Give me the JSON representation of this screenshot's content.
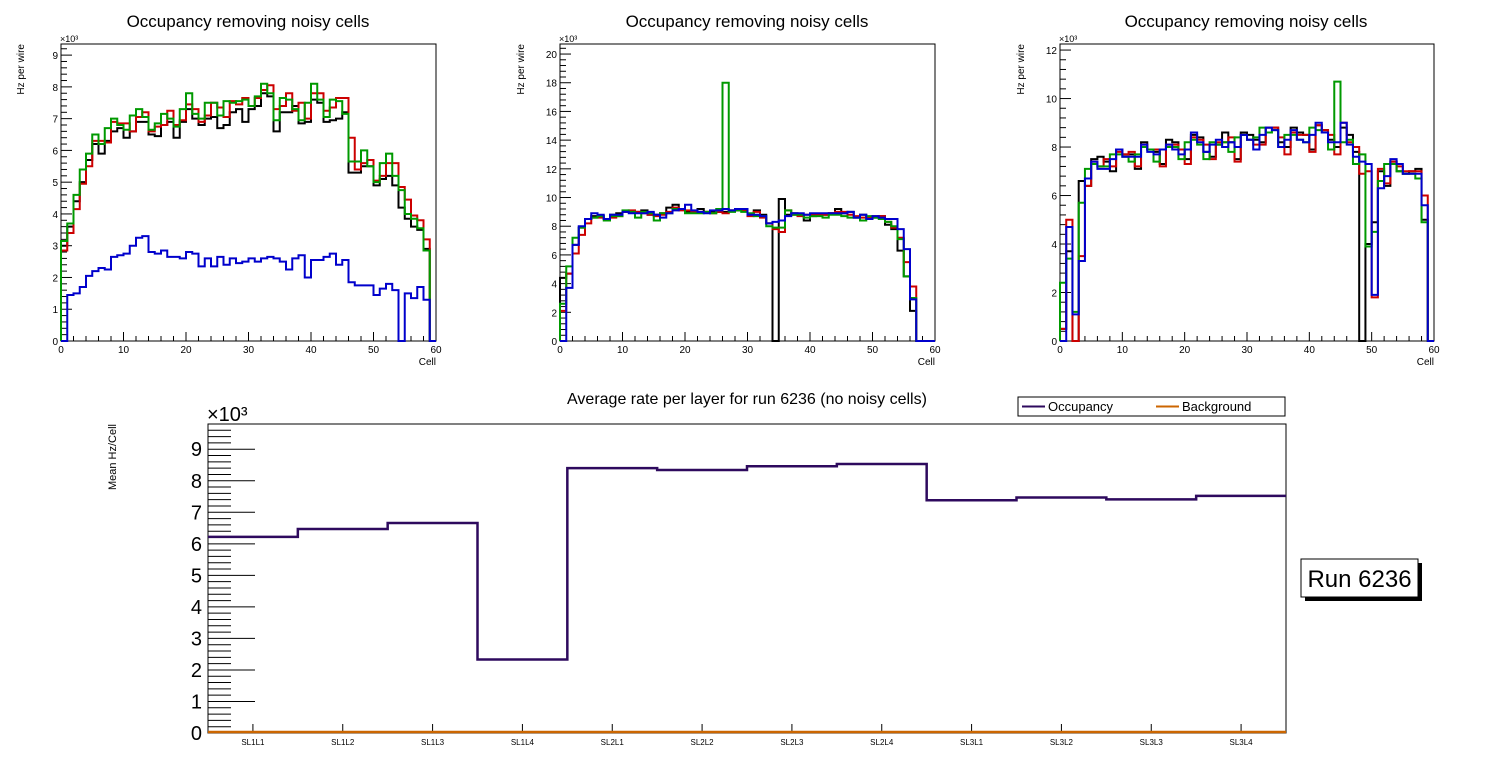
{
  "chart_data": [
    {
      "type": "histogram-step",
      "title": "Occupancy removing noisy cells",
      "xlabel": "Cell",
      "ylabel": "Hz per wire",
      "y_multiplier_label": "×10³",
      "xlim": [
        0,
        60
      ],
      "ylim": [
        0,
        9.35
      ],
      "y_units": "thousands",
      "xticks": [
        0,
        10,
        20,
        30,
        40,
        50,
        60
      ],
      "yticks": [
        0,
        1,
        2,
        3,
        4,
        5,
        6,
        7,
        8,
        9
      ],
      "series": [
        {
          "name": "black",
          "color": "#000000",
          "values": [
            3.0,
            3.6,
            4.4,
            5.0,
            5.7,
            6.2,
            5.9,
            6.3,
            6.6,
            6.7,
            6.4,
            6.6,
            6.9,
            6.9,
            6.5,
            6.45,
            6.8,
            6.9,
            6.4,
            6.9,
            7.3,
            7.0,
            6.8,
            7.0,
            7.05,
            6.7,
            6.8,
            7.2,
            7.3,
            6.9,
            7.3,
            7.4,
            7.8,
            7.7,
            6.6,
            7.2,
            7.2,
            7.4,
            6.85,
            6.9,
            7.6,
            7.5,
            6.9,
            6.95,
            7.0,
            7.2,
            5.3,
            5.3,
            5.5,
            5.5,
            4.9,
            5.1,
            5.2,
            4.9,
            4.2,
            3.85,
            3.6,
            3.5,
            2.9,
            0
          ]
        },
        {
          "name": "red",
          "color": "#cc0000",
          "values": [
            2.85,
            3.4,
            4.15,
            4.95,
            5.5,
            6.3,
            6.3,
            6.25,
            6.9,
            6.85,
            6.85,
            6.6,
            7.05,
            7.2,
            6.6,
            6.75,
            6.8,
            7.25,
            6.8,
            6.95,
            7.45,
            7.3,
            6.9,
            7.1,
            7.5,
            7.35,
            7.05,
            7.55,
            7.45,
            7.65,
            7.4,
            7.65,
            7.9,
            8.05,
            7.3,
            7.4,
            7.8,
            7.25,
            7.5,
            7.0,
            7.8,
            7.8,
            7.25,
            7.35,
            7.65,
            7.65,
            6.4,
            5.4,
            5.6,
            5.7,
            5.05,
            5.2,
            5.6,
            5.6,
            4.85,
            4.45,
            3.95,
            3.8,
            3.2,
            0
          ]
        },
        {
          "name": "green",
          "color": "#009900",
          "values": [
            3.15,
            3.7,
            4.6,
            5.4,
            5.9,
            6.5,
            6.2,
            6.7,
            7.0,
            6.8,
            6.65,
            7.1,
            7.3,
            7.05,
            6.65,
            6.85,
            7.15,
            7.0,
            6.75,
            7.3,
            7.8,
            7.15,
            7.0,
            7.5,
            7.5,
            7.1,
            7.55,
            7.5,
            7.55,
            7.6,
            7.4,
            7.7,
            8.1,
            7.8,
            6.95,
            7.65,
            7.6,
            7.3,
            6.95,
            7.5,
            8.1,
            7.6,
            7.05,
            7.6,
            7.55,
            7.15,
            5.65,
            5.65,
            6.0,
            5.5,
            5.0,
            5.6,
            5.9,
            5.2,
            4.75,
            4.0,
            3.85,
            3.55,
            2.85,
            0
          ]
        },
        {
          "name": "blue",
          "color": "#0000cc",
          "values": [
            0,
            1.45,
            1.5,
            1.7,
            2.05,
            2.2,
            2.3,
            2.25,
            2.65,
            2.7,
            2.75,
            3.0,
            3.25,
            3.3,
            2.8,
            2.75,
            2.85,
            2.65,
            2.65,
            2.6,
            2.8,
            2.75,
            2.35,
            2.6,
            2.35,
            2.65,
            2.4,
            2.6,
            2.45,
            2.5,
            2.6,
            2.5,
            2.6,
            2.65,
            2.6,
            2.5,
            2.25,
            2.6,
            2.7,
            2.0,
            2.55,
            2.55,
            2.65,
            2.75,
            2.4,
            2.55,
            1.85,
            1.75,
            1.75,
            1.75,
            1.45,
            1.65,
            1.8,
            1.6,
            0,
            1.5,
            1.35,
            1.7,
            1.3,
            0
          ]
        }
      ]
    },
    {
      "type": "histogram-step",
      "title": "Occupancy removing noisy cells",
      "xlabel": "Cell",
      "ylabel": "Hz per wire",
      "y_multiplier_label": "×10³",
      "xlim": [
        0,
        60
      ],
      "ylim": [
        0,
        20.7
      ],
      "y_units": "thousands",
      "xticks": [
        0,
        10,
        20,
        30,
        40,
        50,
        60
      ],
      "yticks": [
        0,
        2,
        4,
        6,
        8,
        10,
        12,
        14,
        16,
        18,
        20
      ],
      "series": [
        {
          "name": "black",
          "color": "#000000",
          "values": [
            4.4,
            4.7,
            6.7,
            7.9,
            8.5,
            8.7,
            8.7,
            8.5,
            8.8,
            8.9,
            9.0,
            9.0,
            9.0,
            9.1,
            8.8,
            8.8,
            8.9,
            9.3,
            9.5,
            9.2,
            9.0,
            9.0,
            9.2,
            9.0,
            9.0,
            9.0,
            9.0,
            9.1,
            9.1,
            9.2,
            8.8,
            9.1,
            8.8,
            8.2,
            0,
            9.9,
            8.8,
            8.9,
            8.8,
            8.4,
            8.7,
            8.8,
            8.8,
            8.9,
            9.2,
            8.9,
            9.0,
            8.6,
            8.8,
            8.6,
            8.6,
            8.7,
            8.1,
            7.8,
            6.3,
            4.5,
            2.1,
            0,
            0,
            0
          ]
        },
        {
          "name": "red",
          "color": "#cc0000",
          "values": [
            2.1,
            4.7,
            6.1,
            7.4,
            8.2,
            8.6,
            8.6,
            8.5,
            8.6,
            8.7,
            9.0,
            9.1,
            9.0,
            8.9,
            8.8,
            8.7,
            8.8,
            9.0,
            9.3,
            9.1,
            9.1,
            9.0,
            9.0,
            9.0,
            8.9,
            9.0,
            8.9,
            9.1,
            9.2,
            9.1,
            8.7,
            9.0,
            8.6,
            8.2,
            7.8,
            7.6,
            9.1,
            8.8,
            8.7,
            8.8,
            8.8,
            8.8,
            8.8,
            8.9,
            9.0,
            9.0,
            8.8,
            8.7,
            8.6,
            8.6,
            8.7,
            8.7,
            8.3,
            7.9,
            7.2,
            5.5,
            3.8,
            0,
            0,
            0
          ]
        },
        {
          "name": "green",
          "color": "#009900",
          "values": [
            2.6,
            5.2,
            7.2,
            7.9,
            8.5,
            8.6,
            8.7,
            8.4,
            8.7,
            8.7,
            9.1,
            9.0,
            8.6,
            9.0,
            8.9,
            8.4,
            8.9,
            8.9,
            9.2,
            9.2,
            8.9,
            8.9,
            8.9,
            9.0,
            8.9,
            9.2,
            18.0,
            9.0,
            9.1,
            9.0,
            8.9,
            8.7,
            8.7,
            8.0,
            7.9,
            7.9,
            9.1,
            8.8,
            8.8,
            8.6,
            8.7,
            8.7,
            8.6,
            8.8,
            8.8,
            8.7,
            8.6,
            8.6,
            8.4,
            8.7,
            8.6,
            8.5,
            8.3,
            8.0,
            7.1,
            4.5,
            3.0,
            0,
            0,
            0
          ]
        },
        {
          "name": "blue",
          "color": "#0000cc",
          "values": [
            0,
            3.7,
            6.7,
            8.0,
            8.5,
            8.9,
            8.8,
            8.5,
            8.8,
            8.8,
            9.0,
            8.9,
            8.9,
            8.9,
            9.0,
            8.8,
            8.6,
            8.9,
            9.1,
            9.2,
            9.5,
            9.1,
            9.0,
            8.9,
            9.1,
            9.1,
            9.2,
            9.1,
            9.2,
            9.2,
            8.8,
            8.8,
            8.7,
            8.2,
            8.3,
            8.4,
            8.7,
            8.9,
            8.9,
            8.8,
            8.9,
            8.9,
            8.9,
            8.9,
            8.9,
            8.9,
            9.0,
            8.6,
            8.8,
            8.5,
            8.7,
            8.6,
            8.5,
            8.5,
            7.8,
            6.4,
            2.9,
            0,
            0,
            0
          ]
        }
      ]
    },
    {
      "type": "histogram-step",
      "title": "Occupancy removing noisy cells",
      "xlabel": "Cell",
      "ylabel": "Hz per wire",
      "y_multiplier_label": "×10³",
      "xlim": [
        0,
        60
      ],
      "ylim": [
        0,
        12.25
      ],
      "y_units": "thousands",
      "xticks": [
        0,
        10,
        20,
        30,
        40,
        50,
        60
      ],
      "yticks": [
        0,
        2,
        4,
        6,
        8,
        10,
        12
      ],
      "series": [
        {
          "name": "black",
          "color": "#000000",
          "values": [
            0.5,
            3.7,
            0,
            6.6,
            6.4,
            7.5,
            7.6,
            7.4,
            7.0,
            7.9,
            7.7,
            7.7,
            7.1,
            8.2,
            7.9,
            7.8,
            7.3,
            8.3,
            8.2,
            7.9,
            7.5,
            8.5,
            8.4,
            7.8,
            7.6,
            8.1,
            8.6,
            8.2,
            7.5,
            8.6,
            8.5,
            8.3,
            8.2,
            8.8,
            8.8,
            8.2,
            8.0,
            8.8,
            8.6,
            8.5,
            7.9,
            8.9,
            8.7,
            8.3,
            8.0,
            8.8,
            8.5,
            7.8,
            0,
            4.0,
            4.9,
            7.0,
            6.4,
            7.4,
            7.0,
            6.9,
            7.0,
            7.1,
            5.0,
            0
          ]
        },
        {
          "name": "red",
          "color": "#cc0000",
          "values": [
            0.5,
            5.0,
            0,
            3.5,
            6.4,
            7.4,
            7.2,
            7.5,
            7.2,
            7.8,
            7.7,
            7.8,
            7.2,
            8.1,
            7.9,
            7.9,
            7.2,
            8.1,
            8.1,
            7.9,
            7.3,
            8.4,
            8.3,
            8.1,
            7.5,
            8.2,
            8.2,
            8.4,
            7.4,
            8.5,
            8.3,
            8.1,
            8.1,
            8.8,
            8.8,
            8.4,
            7.7,
            8.6,
            8.5,
            8.5,
            7.8,
            8.9,
            8.7,
            8.5,
            7.7,
            9.0,
            8.2,
            8.0,
            6.9,
            7.0,
            1.8,
            7.1,
            6.5,
            7.4,
            7.2,
            7.0,
            7.0,
            7.0,
            6.0,
            0
          ]
        },
        {
          "name": "green",
          "color": "#009900",
          "values": [
            2.4,
            3.4,
            1.2,
            5.7,
            7.1,
            7.3,
            7.2,
            7.2,
            7.7,
            7.7,
            7.6,
            7.4,
            7.7,
            8.0,
            7.9,
            7.4,
            7.9,
            8.0,
            8.0,
            7.5,
            8.2,
            8.3,
            8.1,
            7.5,
            8.2,
            8.1,
            8.2,
            7.8,
            8.4,
            8.5,
            8.3,
            8.4,
            8.8,
            8.6,
            8.7,
            8.0,
            8.5,
            8.5,
            8.3,
            8.2,
            8.8,
            8.7,
            8.6,
            7.9,
            10.7,
            8.2,
            8.3,
            7.3,
            7.7,
            3.9,
            4.5,
            6.6,
            7.3,
            7.3,
            7.0,
            6.9,
            6.9,
            6.7,
            4.9,
            0
          ]
        },
        {
          "name": "blue",
          "color": "#0000cc",
          "values": [
            0,
            4.7,
            1.1,
            3.3,
            6.7,
            7.4,
            7.1,
            7.1,
            7.5,
            7.9,
            7.6,
            7.6,
            7.6,
            8.1,
            7.8,
            7.7,
            7.9,
            8.1,
            7.9,
            7.7,
            7.9,
            8.6,
            8.2,
            7.8,
            8.1,
            8.3,
            8.0,
            8.2,
            8.0,
            8.5,
            8.3,
            7.9,
            8.5,
            8.8,
            8.7,
            8.0,
            8.3,
            8.7,
            8.3,
            8.2,
            8.5,
            9.0,
            8.6,
            8.2,
            8.2,
            9.0,
            8.1,
            7.6,
            7.4,
            7.3,
            1.9,
            6.3,
            6.8,
            7.5,
            7.3,
            6.9,
            6.9,
            6.9,
            5.6,
            0
          ]
        }
      ]
    },
    {
      "type": "histogram-step",
      "title": "Average rate per layer for run 6236 (no noisy cells)",
      "xlabel": "",
      "ylabel": "Mean Hz/Cell",
      "y_multiplier_label": "×10³",
      "categories": [
        "SL1L1",
        "SL1L2",
        "SL1L3",
        "SL1L4",
        "SL2L1",
        "SL2L2",
        "SL2L3",
        "SL2L4",
        "SL3L1",
        "SL3L2",
        "SL3L3",
        "SL3L4"
      ],
      "ylim": [
        0,
        9.8
      ],
      "y_units": "thousands",
      "yticks": [
        0,
        1,
        2,
        3,
        4,
        5,
        6,
        7,
        8,
        9
      ],
      "legend_position": "top-right",
      "series": [
        {
          "name": "Occupancy",
          "color": "#2e0a5e",
          "values": [
            6.22,
            6.47,
            6.66,
            2.33,
            8.4,
            8.34,
            8.46,
            8.53,
            7.38,
            7.47,
            7.41,
            7.52
          ]
        },
        {
          "name": "Background",
          "color": "#cc6600",
          "values": [
            0.03,
            0.03,
            0.03,
            0.03,
            0.03,
            0.03,
            0.03,
            0.03,
            0.03,
            0.03,
            0.03,
            0.03
          ]
        }
      ],
      "annotation": "Run 6236"
    }
  ]
}
